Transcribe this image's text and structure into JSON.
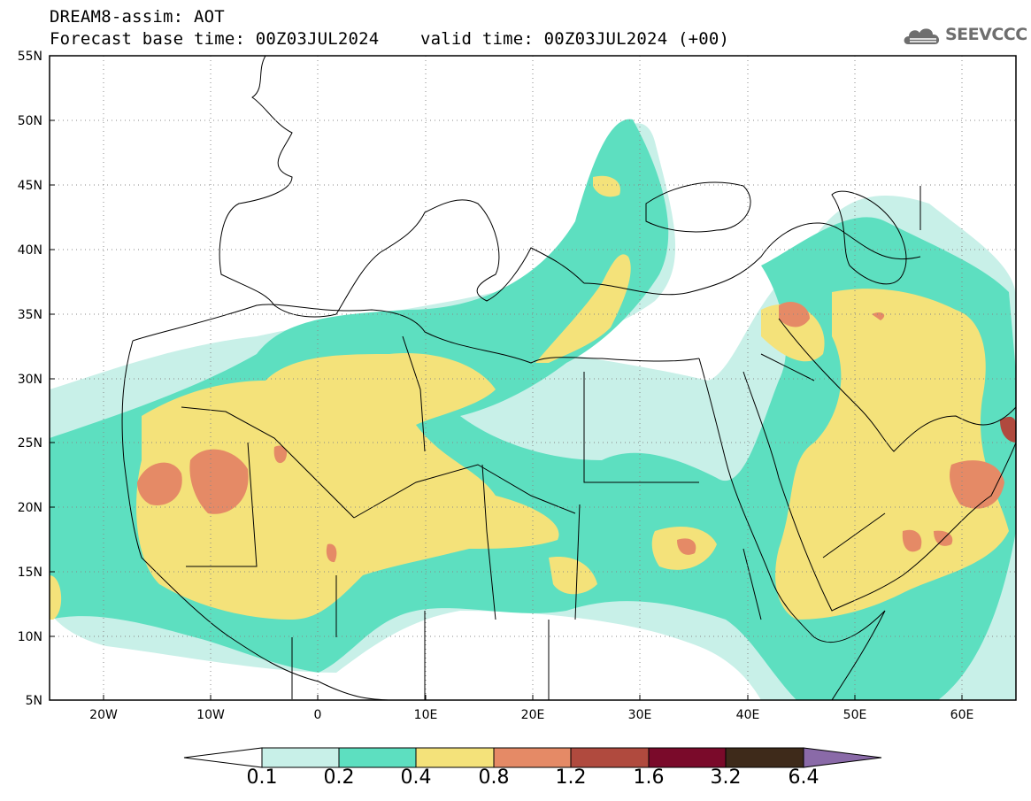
{
  "title": {
    "line1": "DREAM8-assim: AOT",
    "line2": "Forecast base time: 00Z03JUL2024    valid time: 00Z03JUL2024 (+00)"
  },
  "logo": {
    "text": "SEEVCCC",
    "icon": "cloud-icon"
  },
  "map": {
    "lon_range": [
      -25,
      65
    ],
    "lat_range": [
      5,
      55
    ],
    "lat_ticks": [
      "5N",
      "10N",
      "15N",
      "20N",
      "25N",
      "30N",
      "35N",
      "40N",
      "45N",
      "50N",
      "55N"
    ],
    "lon_ticks": [
      "20W",
      "10W",
      "0",
      "10E",
      "20E",
      "30E",
      "40E",
      "50E",
      "60E"
    ]
  },
  "colorbar": {
    "labels": [
      "0.1",
      "0.2",
      "0.4",
      "0.8",
      "1.2",
      "1.6",
      "3.2",
      "6.4"
    ],
    "colors": [
      "#c8f0e8",
      "#5ddfc0",
      "#f4e27a",
      "#e58a66",
      "#b04a3e",
      "#7a0a2a",
      "#3e2a1a",
      "#8a6aa8"
    ]
  }
}
